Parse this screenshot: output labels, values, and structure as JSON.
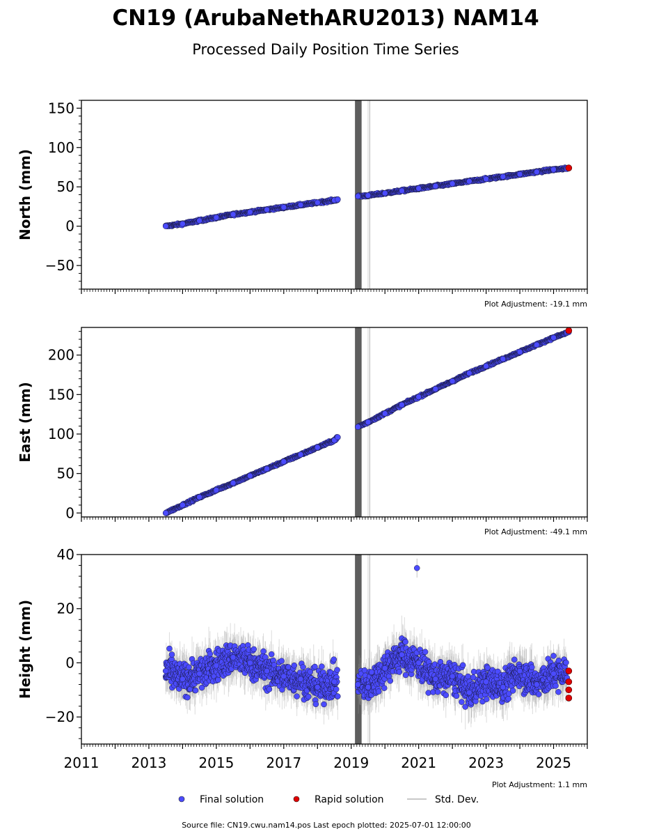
{
  "title": "CN19 (ArubaNethARU2013) NAM14",
  "subtitle": "Processed Daily Position Time Series",
  "legend": {
    "final": "Final solution",
    "rapid": "Rapid solution",
    "std": "Std. Dev."
  },
  "footer": "Source file: CN19.cwu.nam14.pos  Last epoch plotted: 2025-07-01 12:00:00",
  "colors": {
    "final": "#4b4bff",
    "rapid": "#e00000",
    "std": "#9a9a9a",
    "gap": "#5a5a5a"
  },
  "x_ticks": [
    "2011",
    "2013",
    "2015",
    "2017",
    "2019",
    "2021",
    "2023",
    "2025"
  ],
  "chart_data": [
    {
      "type": "scatter",
      "ylabel": "North (mm)",
      "adjustment": "Plot Adjustment: -19.1 mm",
      "xlim": [
        2011.0,
        2026.0
      ],
      "ylim": [
        -80,
        160
      ],
      "y_ticks": [
        -50,
        0,
        50,
        100,
        150
      ],
      "y_tick_labels": [
        "−50",
        "0",
        "50",
        "100",
        "150"
      ],
      "series": [
        {
          "values": [
            [
              2013.5,
              0
            ],
            [
              2014.0,
              3
            ],
            [
              2014.5,
              7
            ],
            [
              2015.0,
              11
            ],
            [
              2015.5,
              15
            ],
            [
              2016.0,
              18
            ],
            [
              2016.5,
              21
            ],
            [
              2017.0,
              24
            ],
            [
              2017.5,
              27
            ],
            [
              2018.0,
              30
            ],
            [
              2018.5,
              33
            ],
            [
              2018.6,
              34
            ],
            [
              2019.2,
              38
            ],
            [
              2019.5,
              39
            ],
            [
              2020.0,
              42
            ],
            [
              2020.5,
              45
            ],
            [
              2021.0,
              48
            ],
            [
              2021.5,
              51
            ],
            [
              2022.0,
              54
            ],
            [
              2022.5,
              57
            ],
            [
              2023.0,
              60
            ],
            [
              2023.5,
              63
            ],
            [
              2024.0,
              66
            ],
            [
              2024.5,
              69
            ],
            [
              2025.0,
              72
            ],
            [
              2025.45,
              73.5
            ]
          ]
        },
        {
          "values": [
            [
              2025.45,
              74
            ]
          ]
        }
      ]
    },
    {
      "type": "scatter",
      "ylabel": "East (mm)",
      "adjustment": "Plot Adjustment: -49.1 mm",
      "xlim": [
        2011.0,
        2026.0
      ],
      "ylim": [
        -5,
        235
      ],
      "y_ticks": [
        0,
        50,
        100,
        150,
        200
      ],
      "y_tick_labels": [
        "0",
        "50",
        "100",
        "150",
        "200"
      ],
      "series": [
        {
          "values": [
            [
              2013.5,
              0
            ],
            [
              2014.0,
              10
            ],
            [
              2014.5,
              20
            ],
            [
              2015.0,
              29
            ],
            [
              2015.5,
              38
            ],
            [
              2016.0,
              47
            ],
            [
              2016.5,
              56
            ],
            [
              2017.0,
              65
            ],
            [
              2017.5,
              74
            ],
            [
              2018.0,
              83
            ],
            [
              2018.5,
              92
            ],
            [
              2018.6,
              96
            ],
            [
              2019.2,
              109
            ],
            [
              2019.5,
              115
            ],
            [
              2020.0,
              126
            ],
            [
              2020.5,
              137
            ],
            [
              2021.0,
              147
            ],
            [
              2021.5,
              157
            ],
            [
              2022.0,
              167
            ],
            [
              2022.5,
              177
            ],
            [
              2023.0,
              186
            ],
            [
              2023.5,
              195
            ],
            [
              2024.0,
              204
            ],
            [
              2024.5,
              213
            ],
            [
              2025.0,
              222
            ],
            [
              2025.45,
              229
            ]
          ]
        },
        {
          "values": [
            [
              2025.45,
              231
            ]
          ]
        }
      ]
    },
    {
      "type": "scatter",
      "ylabel": "Height (mm)",
      "adjustment": "Plot Adjustment: 1.1 mm",
      "xlim": [
        2011.0,
        2026.0
      ],
      "ylim": [
        -30,
        40
      ],
      "y_ticks": [
        -20,
        0,
        20,
        40
      ],
      "y_tick_labels": [
        "−20",
        "0",
        "20",
        "40"
      ],
      "series": [
        {
          "values": [
            [
              2013.5,
              -3
            ],
            [
              2014.0,
              -6
            ],
            [
              2014.5,
              -4
            ],
            [
              2015.0,
              -1
            ],
            [
              2015.5,
              2
            ],
            [
              2016.0,
              0
            ],
            [
              2016.5,
              -3
            ],
            [
              2017.0,
              -5
            ],
            [
              2017.5,
              -6
            ],
            [
              2018.0,
              -9
            ],
            [
              2018.5,
              -7
            ],
            [
              2019.2,
              -8
            ],
            [
              2019.5,
              -9
            ],
            [
              2020.0,
              -2
            ],
            [
              2020.5,
              3
            ],
            [
              2021.0,
              0
            ],
            [
              2021.5,
              -6
            ],
            [
              2022.0,
              -5
            ],
            [
              2022.5,
              -11
            ],
            [
              2023.0,
              -7
            ],
            [
              2023.5,
              -9
            ],
            [
              2024.0,
              -3
            ],
            [
              2024.5,
              -8
            ],
            [
              2025.0,
              -4
            ],
            [
              2020.95,
              35
            ]
          ]
        },
        {
          "values": [
            [
              2025.45,
              -3
            ],
            [
              2025.45,
              -7
            ],
            [
              2025.45,
              -10
            ],
            [
              2025.45,
              -13
            ]
          ]
        }
      ]
    }
  ]
}
